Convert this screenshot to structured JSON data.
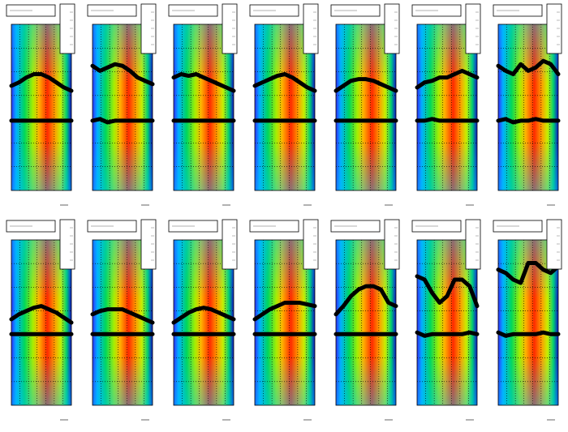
{
  "chart_data": [
    {
      "type": "line",
      "xlim": [
        0,
        1
      ],
      "ylim": [
        0,
        1
      ],
      "x": [
        0,
        0.125,
        0.25,
        0.375,
        0.5,
        0.625,
        0.75,
        0.875,
        1
      ],
      "series": [
        {
          "color": "#000000",
          "values": [
            0.63,
            0.65,
            0.68,
            0.7,
            0.7,
            0.68,
            0.65,
            0.62,
            0.6
          ]
        },
        {
          "color": "#000000",
          "values": [
            0.42,
            0.42,
            0.42,
            0.42,
            0.42,
            0.42,
            0.42,
            0.42,
            0.42
          ]
        }
      ]
    },
    {
      "type": "line",
      "xlim": [
        0,
        1
      ],
      "ylim": [
        0,
        1
      ],
      "x": [
        0,
        0.125,
        0.25,
        0.375,
        0.5,
        0.625,
        0.75,
        0.875,
        1
      ],
      "series": [
        {
          "color": "#000000",
          "values": [
            0.75,
            0.72,
            0.74,
            0.76,
            0.75,
            0.72,
            0.68,
            0.66,
            0.64
          ]
        },
        {
          "color": "#000000",
          "values": [
            0.42,
            0.43,
            0.41,
            0.42,
            0.42,
            0.42,
            0.42,
            0.42,
            0.42
          ]
        }
      ]
    },
    {
      "type": "line",
      "xlim": [
        0,
        1
      ],
      "ylim": [
        0,
        1
      ],
      "x": [
        0,
        0.125,
        0.25,
        0.375,
        0.5,
        0.625,
        0.75,
        0.875,
        1
      ],
      "series": [
        {
          "color": "#000000",
          "values": [
            0.68,
            0.7,
            0.69,
            0.7,
            0.68,
            0.66,
            0.64,
            0.62,
            0.6
          ]
        },
        {
          "color": "#000000",
          "values": [
            0.42,
            0.42,
            0.42,
            0.42,
            0.42,
            0.42,
            0.42,
            0.42,
            0.42
          ]
        }
      ]
    },
    {
      "type": "line",
      "xlim": [
        0,
        1
      ],
      "ylim": [
        0,
        1
      ],
      "x": [
        0,
        0.125,
        0.25,
        0.375,
        0.5,
        0.625,
        0.75,
        0.875,
        1
      ],
      "series": [
        {
          "color": "#000000",
          "values": [
            0.63,
            0.65,
            0.67,
            0.69,
            0.7,
            0.68,
            0.65,
            0.62,
            0.6
          ]
        },
        {
          "color": "#000000",
          "values": [
            0.42,
            0.42,
            0.42,
            0.42,
            0.42,
            0.42,
            0.42,
            0.42,
            0.42
          ]
        }
      ]
    },
    {
      "type": "line",
      "xlim": [
        0,
        1
      ],
      "ylim": [
        0,
        1
      ],
      "x": [
        0,
        0.125,
        0.25,
        0.375,
        0.5,
        0.625,
        0.75,
        0.875,
        1
      ],
      "series": [
        {
          "color": "#000000",
          "values": [
            0.6,
            0.63,
            0.66,
            0.67,
            0.67,
            0.66,
            0.64,
            0.62,
            0.6
          ]
        },
        {
          "color": "#000000",
          "values": [
            0.42,
            0.42,
            0.42,
            0.42,
            0.42,
            0.42,
            0.42,
            0.42,
            0.42
          ]
        }
      ]
    },
    {
      "type": "line",
      "xlim": [
        0,
        1
      ],
      "ylim": [
        0,
        1
      ],
      "x": [
        0,
        0.125,
        0.25,
        0.375,
        0.5,
        0.625,
        0.75,
        0.875,
        1
      ],
      "series": [
        {
          "color": "#000000",
          "values": [
            0.62,
            0.65,
            0.66,
            0.68,
            0.68,
            0.7,
            0.72,
            0.7,
            0.68
          ]
        },
        {
          "color": "#000000",
          "values": [
            0.42,
            0.42,
            0.43,
            0.42,
            0.42,
            0.42,
            0.42,
            0.42,
            0.42
          ]
        }
      ]
    },
    {
      "type": "line",
      "xlim": [
        0,
        1
      ],
      "ylim": [
        0,
        1
      ],
      "x": [
        0,
        0.125,
        0.25,
        0.375,
        0.5,
        0.625,
        0.75,
        0.875,
        1
      ],
      "series": [
        {
          "color": "#000000",
          "values": [
            0.75,
            0.72,
            0.7,
            0.76,
            0.72,
            0.74,
            0.78,
            0.76,
            0.7
          ]
        },
        {
          "color": "#000000",
          "values": [
            0.42,
            0.43,
            0.41,
            0.42,
            0.42,
            0.43,
            0.42,
            0.42,
            0.42
          ]
        }
      ]
    },
    {
      "type": "line",
      "xlim": [
        0,
        1
      ],
      "ylim": [
        0,
        1
      ],
      "x": [
        0,
        0.125,
        0.25,
        0.375,
        0.5,
        0.625,
        0.75,
        0.875,
        1
      ],
      "series": [
        {
          "color": "#000000",
          "values": [
            0.52,
            0.55,
            0.57,
            0.59,
            0.6,
            0.58,
            0.56,
            0.53,
            0.5
          ]
        },
        {
          "color": "#000000",
          "values": [
            0.43,
            0.43,
            0.43,
            0.43,
            0.43,
            0.43,
            0.43,
            0.43,
            0.43
          ]
        }
      ]
    },
    {
      "type": "line",
      "xlim": [
        0,
        1
      ],
      "ylim": [
        0,
        1
      ],
      "x": [
        0,
        0.125,
        0.25,
        0.375,
        0.5,
        0.625,
        0.75,
        0.875,
        1
      ],
      "series": [
        {
          "color": "#000000",
          "values": [
            0.55,
            0.57,
            0.58,
            0.58,
            0.58,
            0.56,
            0.54,
            0.52,
            0.5
          ]
        },
        {
          "color": "#000000",
          "values": [
            0.43,
            0.43,
            0.43,
            0.43,
            0.43,
            0.43,
            0.43,
            0.43,
            0.43
          ]
        }
      ]
    },
    {
      "type": "line",
      "xlim": [
        0,
        1
      ],
      "ylim": [
        0,
        1
      ],
      "x": [
        0,
        0.125,
        0.25,
        0.375,
        0.5,
        0.625,
        0.75,
        0.875,
        1
      ],
      "series": [
        {
          "color": "#000000",
          "values": [
            0.5,
            0.53,
            0.56,
            0.58,
            0.59,
            0.58,
            0.56,
            0.54,
            0.52
          ]
        },
        {
          "color": "#000000",
          "values": [
            0.43,
            0.43,
            0.43,
            0.43,
            0.43,
            0.43,
            0.43,
            0.43,
            0.43
          ]
        }
      ]
    },
    {
      "type": "line",
      "xlim": [
        0,
        1
      ],
      "ylim": [
        0,
        1
      ],
      "x": [
        0,
        0.125,
        0.25,
        0.375,
        0.5,
        0.625,
        0.75,
        0.875,
        1
      ],
      "series": [
        {
          "color": "#000000",
          "values": [
            0.52,
            0.55,
            0.58,
            0.6,
            0.62,
            0.62,
            0.62,
            0.61,
            0.6
          ]
        },
        {
          "color": "#000000",
          "values": [
            0.43,
            0.43,
            0.43,
            0.43,
            0.43,
            0.43,
            0.43,
            0.43,
            0.43
          ]
        }
      ]
    },
    {
      "type": "line",
      "xlim": [
        0,
        1
      ],
      "ylim": [
        0,
        1
      ],
      "x": [
        0,
        0.125,
        0.25,
        0.375,
        0.5,
        0.625,
        0.75,
        0.875,
        1
      ],
      "series": [
        {
          "color": "#000000",
          "values": [
            0.55,
            0.6,
            0.66,
            0.7,
            0.72,
            0.72,
            0.7,
            0.62,
            0.6
          ]
        },
        {
          "color": "#000000",
          "values": [
            0.43,
            0.43,
            0.43,
            0.43,
            0.43,
            0.43,
            0.43,
            0.43,
            0.43
          ]
        }
      ]
    },
    {
      "type": "line",
      "xlim": [
        0,
        1
      ],
      "ylim": [
        0,
        1
      ],
      "x": [
        0,
        0.125,
        0.25,
        0.375,
        0.5,
        0.625,
        0.75,
        0.875,
        1
      ],
      "series": [
        {
          "color": "#000000",
          "values": [
            0.78,
            0.76,
            0.68,
            0.62,
            0.66,
            0.76,
            0.76,
            0.72,
            0.6
          ]
        },
        {
          "color": "#000000",
          "values": [
            0.44,
            0.42,
            0.43,
            0.43,
            0.43,
            0.43,
            0.43,
            0.44,
            0.43
          ]
        }
      ]
    },
    {
      "type": "line",
      "xlim": [
        0,
        1
      ],
      "ylim": [
        0,
        1
      ],
      "x": [
        0,
        0.125,
        0.25,
        0.375,
        0.5,
        0.625,
        0.75,
        0.875,
        1
      ],
      "series": [
        {
          "color": "#000000",
          "values": [
            0.82,
            0.8,
            0.76,
            0.74,
            0.86,
            0.86,
            0.82,
            0.8,
            0.84
          ]
        },
        {
          "color": "#000000",
          "values": [
            0.44,
            0.42,
            0.43,
            0.43,
            0.43,
            0.43,
            0.44,
            0.43,
            0.43
          ]
        }
      ]
    }
  ]
}
